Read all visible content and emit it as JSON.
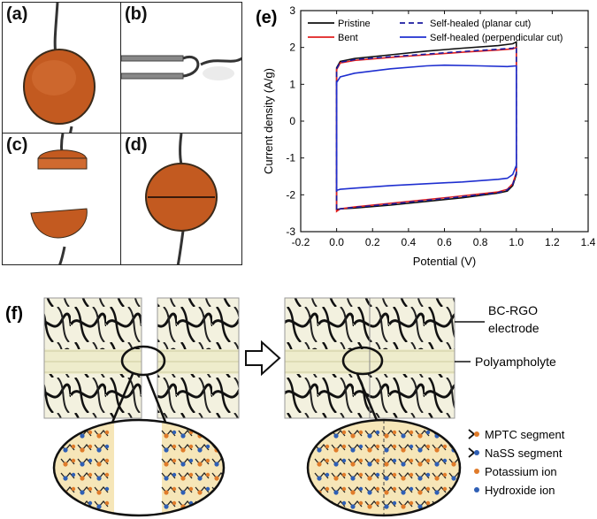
{
  "panel_labels": {
    "a": "(a)",
    "b": "(b)",
    "c": "(c)",
    "d": "(d)",
    "e": "(e)",
    "f": "(f)"
  },
  "chart_data": {
    "type": "line",
    "xlabel": "Potential (V)",
    "ylabel": "Current density (A/g)",
    "xlim": [
      -0.2,
      1.4
    ],
    "ylim": [
      -3,
      3
    ],
    "xticks": [
      "-0.2",
      "0.0",
      "0.2",
      "0.4",
      "0.6",
      "0.8",
      "1.0",
      "1.2",
      "1.4"
    ],
    "yticks": [
      "-3",
      "-2",
      "-1",
      "0",
      "1",
      "2",
      "3"
    ],
    "legend_position": "top",
    "series": [
      {
        "name": "Pristine",
        "color": "#111111",
        "dash": "solid",
        "upper": [
          [
            0,
            1.45
          ],
          [
            0.02,
            1.62
          ],
          [
            0.1,
            1.7
          ],
          [
            0.3,
            1.8
          ],
          [
            0.5,
            1.9
          ],
          [
            0.7,
            1.98
          ],
          [
            0.9,
            2.05
          ],
          [
            0.98,
            2.1
          ],
          [
            1.0,
            2.15
          ]
        ],
        "lower": [
          [
            1.0,
            -1.45
          ],
          [
            0.98,
            -1.75
          ],
          [
            0.95,
            -1.9
          ],
          [
            0.9,
            -1.95
          ],
          [
            0.7,
            -2.08
          ],
          [
            0.5,
            -2.18
          ],
          [
            0.3,
            -2.28
          ],
          [
            0.1,
            -2.36
          ],
          [
            0.02,
            -2.38
          ],
          [
            0,
            -2.4
          ]
        ]
      },
      {
        "name": "Bent",
        "color": "#e02020",
        "dash": "solid",
        "upper": [
          [
            0,
            1.4
          ],
          [
            0.02,
            1.58
          ],
          [
            0.1,
            1.65
          ],
          [
            0.3,
            1.73
          ],
          [
            0.5,
            1.8
          ],
          [
            0.7,
            1.87
          ],
          [
            0.9,
            1.93
          ],
          [
            0.98,
            1.96
          ],
          [
            1.0,
            2.0
          ]
        ],
        "lower": [
          [
            1.0,
            -1.4
          ],
          [
            0.98,
            -1.7
          ],
          [
            0.95,
            -1.85
          ],
          [
            0.9,
            -1.92
          ],
          [
            0.7,
            -2.03
          ],
          [
            0.5,
            -2.13
          ],
          [
            0.3,
            -2.23
          ],
          [
            0.1,
            -2.33
          ],
          [
            0.02,
            -2.38
          ],
          [
            0,
            -2.45
          ]
        ]
      },
      {
        "name": "Self-healed (planar cut)",
        "color": "#1a1aa0",
        "dash": "dashed",
        "upper": [
          [
            0,
            1.42
          ],
          [
            0.02,
            1.6
          ],
          [
            0.1,
            1.67
          ],
          [
            0.3,
            1.75
          ],
          [
            0.5,
            1.82
          ],
          [
            0.7,
            1.89
          ],
          [
            0.9,
            1.95
          ],
          [
            0.98,
            1.98
          ],
          [
            1.0,
            2.02
          ]
        ],
        "lower": [
          [
            1.0,
            -1.42
          ],
          [
            0.98,
            -1.72
          ],
          [
            0.95,
            -1.87
          ],
          [
            0.9,
            -1.94
          ],
          [
            0.7,
            -2.05
          ],
          [
            0.5,
            -2.15
          ],
          [
            0.3,
            -2.25
          ],
          [
            0.1,
            -2.34
          ],
          [
            0.02,
            -2.38
          ],
          [
            0,
            -2.43
          ]
        ]
      },
      {
        "name": "Self-healed (perpendicular cut)",
        "color": "#1f2fd0",
        "dash": "solid",
        "upper": [
          [
            0,
            1.05
          ],
          [
            0.02,
            1.2
          ],
          [
            0.1,
            1.3
          ],
          [
            0.3,
            1.42
          ],
          [
            0.5,
            1.5
          ],
          [
            0.6,
            1.52
          ],
          [
            0.8,
            1.5
          ],
          [
            0.95,
            1.48
          ],
          [
            1.0,
            1.5
          ]
        ],
        "lower": [
          [
            1.0,
            -1.2
          ],
          [
            0.98,
            -1.45
          ],
          [
            0.95,
            -1.55
          ],
          [
            0.9,
            -1.58
          ],
          [
            0.7,
            -1.65
          ],
          [
            0.5,
            -1.7
          ],
          [
            0.3,
            -1.75
          ],
          [
            0.1,
            -1.82
          ],
          [
            0.02,
            -1.85
          ],
          [
            0,
            -1.88
          ]
        ]
      }
    ]
  },
  "schematic": {
    "labels": {
      "electrode": "BC-RGO\nelectrode",
      "electrode_line1": "BC-RGO",
      "electrode_line2": "electrode",
      "polyampholyte": "Polyampholyte"
    },
    "legend": [
      {
        "label": "MPTC segment",
        "marker": "chain",
        "dot_color": "#e07b2a"
      },
      {
        "label": "NaSS segment",
        "marker": "chain",
        "dot_color": "#2f5fb5"
      },
      {
        "label": "Potassium ion",
        "marker": "dot",
        "dot_color": "#e07b2a"
      },
      {
        "label": "Hydroxide ion",
        "marker": "dot",
        "dot_color": "#2f5fb5"
      }
    ]
  }
}
